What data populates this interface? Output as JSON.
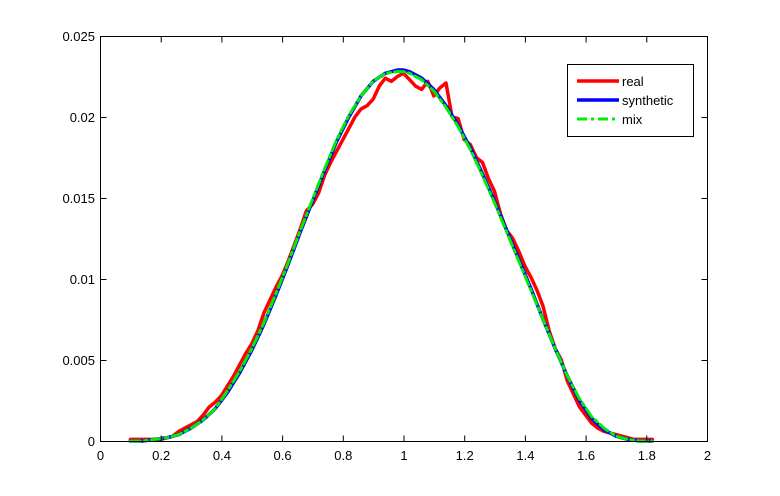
{
  "chart_data": {
    "type": "line",
    "xlim": [
      0,
      2
    ],
    "ylim": [
      0,
      0.025
    ],
    "x_ticks": [
      "0",
      "0.2",
      "0.4",
      "0.6",
      "0.8",
      "1",
      "1.2",
      "1.4",
      "1.6",
      "1.8",
      "2"
    ],
    "y_ticks": [
      "0",
      "0.005",
      "0.01",
      "0.015",
      "0.02",
      "0.025"
    ],
    "grid": false,
    "legend_position": "top-right",
    "series": [
      {
        "name": "real",
        "color": "#ff0000",
        "style": "solid",
        "x": [
          0.1,
          0.2,
          0.24,
          0.26,
          0.28,
          0.3,
          0.32,
          0.34,
          0.36,
          0.38,
          0.4,
          0.42,
          0.44,
          0.46,
          0.48,
          0.5,
          0.52,
          0.54,
          0.56,
          0.58,
          0.6,
          0.62,
          0.64,
          0.66,
          0.68,
          0.7,
          0.72,
          0.74,
          0.76,
          0.78,
          0.8,
          0.82,
          0.84,
          0.86,
          0.88,
          0.9,
          0.92,
          0.94,
          0.96,
          0.98,
          1.0,
          1.02,
          1.04,
          1.06,
          1.08,
          1.1,
          1.12,
          1.14,
          1.16,
          1.18,
          1.2,
          1.22,
          1.24,
          1.26,
          1.28,
          1.3,
          1.32,
          1.34,
          1.36,
          1.38,
          1.4,
          1.42,
          1.44,
          1.46,
          1.48,
          1.5,
          1.52,
          1.54,
          1.56,
          1.58,
          1.6,
          1.62,
          1.64,
          1.66,
          1.68,
          1.7,
          1.72,
          1.74,
          1.76,
          1.78,
          1.8,
          1.82
        ],
        "y": [
          0.0001,
          0.0001,
          0.0003,
          0.0006,
          0.0008,
          0.001,
          0.0012,
          0.0016,
          0.0021,
          0.0024,
          0.0028,
          0.0034,
          0.004,
          0.0047,
          0.0054,
          0.006,
          0.0068,
          0.0079,
          0.0087,
          0.0095,
          0.0102,
          0.0111,
          0.0121,
          0.0131,
          0.0142,
          0.0146,
          0.0153,
          0.0164,
          0.0172,
          0.0179,
          0.0186,
          0.0193,
          0.02,
          0.0205,
          0.0207,
          0.0211,
          0.0219,
          0.0224,
          0.0222,
          0.0225,
          0.0227,
          0.0223,
          0.0219,
          0.0217,
          0.0222,
          0.0213,
          0.0218,
          0.0221,
          0.02,
          0.0199,
          0.0186,
          0.0183,
          0.0175,
          0.0172,
          0.0162,
          0.0154,
          0.014,
          0.013,
          0.0125,
          0.0117,
          0.0108,
          0.0101,
          0.0093,
          0.0083,
          0.0068,
          0.0057,
          0.005,
          0.0037,
          0.0029,
          0.0021,
          0.0016,
          0.0011,
          0.0008,
          0.0006,
          0.0005,
          0.0004,
          0.0003,
          0.0002,
          0.0001,
          0.0001,
          0.0001,
          0.0001
        ]
      },
      {
        "name": "synthetic",
        "color": "#0000ff",
        "style": "solid",
        "x": [
          0.1,
          0.14,
          0.18,
          0.22,
          0.26,
          0.3,
          0.34,
          0.38,
          0.42,
          0.46,
          0.5,
          0.54,
          0.58,
          0.62,
          0.66,
          0.7,
          0.74,
          0.78,
          0.82,
          0.86,
          0.9,
          0.94,
          0.98,
          1.0,
          1.02,
          1.06,
          1.1,
          1.14,
          1.18,
          1.22,
          1.26,
          1.3,
          1.34,
          1.38,
          1.42,
          1.46,
          1.5,
          1.54,
          1.58,
          1.62,
          1.66,
          1.7,
          1.74,
          1.78,
          1.82
        ],
        "y": [
          0.0,
          0.0,
          0.0001,
          0.0002,
          0.0004,
          0.0008,
          0.0013,
          0.002,
          0.003,
          0.0042,
          0.0056,
          0.0072,
          0.009,
          0.0109,
          0.0129,
          0.0148,
          0.0167,
          0.0185,
          0.02,
          0.0213,
          0.0222,
          0.0227,
          0.0229,
          0.0229,
          0.0228,
          0.0224,
          0.0217,
          0.0207,
          0.0195,
          0.0181,
          0.0165,
          0.0148,
          0.013,
          0.0112,
          0.0094,
          0.0075,
          0.0057,
          0.004,
          0.0025,
          0.0014,
          0.0007,
          0.0003,
          0.0001,
          0.0,
          0.0
        ]
      },
      {
        "name": "mix",
        "color": "#00ee00",
        "style": "dashdot",
        "x": [
          0.1,
          0.14,
          0.18,
          0.22,
          0.26,
          0.3,
          0.34,
          0.38,
          0.42,
          0.46,
          0.5,
          0.54,
          0.58,
          0.62,
          0.66,
          0.7,
          0.74,
          0.78,
          0.82,
          0.86,
          0.9,
          0.94,
          0.98,
          1.0,
          1.02,
          1.06,
          1.1,
          1.14,
          1.18,
          1.22,
          1.26,
          1.3,
          1.34,
          1.38,
          1.42,
          1.46,
          1.5,
          1.54,
          1.58,
          1.62,
          1.66,
          1.7,
          1.74,
          1.78,
          1.82
        ],
        "y": [
          0.0,
          0.0,
          0.0001,
          0.0002,
          0.0004,
          0.0008,
          0.0013,
          0.002,
          0.0031,
          0.0043,
          0.0057,
          0.0073,
          0.0091,
          0.011,
          0.013,
          0.0149,
          0.0168,
          0.0186,
          0.0201,
          0.0213,
          0.0222,
          0.0227,
          0.0228,
          0.0228,
          0.0227,
          0.0223,
          0.0216,
          0.0206,
          0.0194,
          0.018,
          0.0164,
          0.0147,
          0.0129,
          0.0111,
          0.0093,
          0.0075,
          0.0057,
          0.004,
          0.0026,
          0.0015,
          0.0008,
          0.0003,
          0.0001,
          0.0,
          0.0
        ]
      }
    ]
  }
}
